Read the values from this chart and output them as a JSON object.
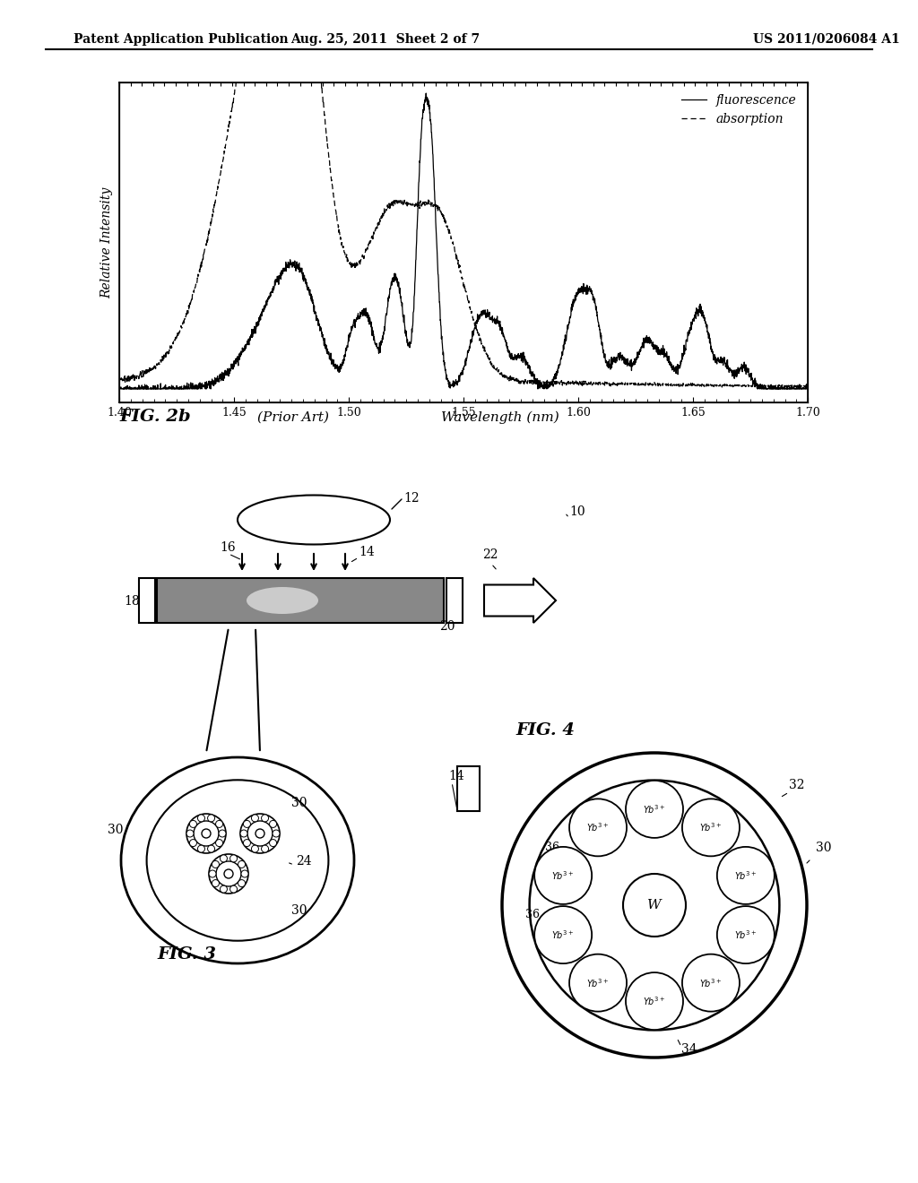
{
  "header_left": "Patent Application Publication",
  "header_mid": "Aug. 25, 2011  Sheet 2 of 7",
  "header_right": "US 2011/0206084 A1",
  "fig2b_label": "FIG. 2b",
  "fig2b_sub": "(Prior Art)",
  "fig2b_xlabel": "Wavelength (nm)",
  "fig2b_ylabel": "Relative Intensity",
  "xlim": [
    1.4,
    1.7
  ],
  "xticks": [
    1.4,
    1.45,
    1.5,
    1.55,
    1.6,
    1.65,
    1.7
  ],
  "fig3_label": "FIG. 3",
  "fig4_label": "FIG. 4",
  "bg_color": "#ffffff",
  "line_color": "#000000"
}
